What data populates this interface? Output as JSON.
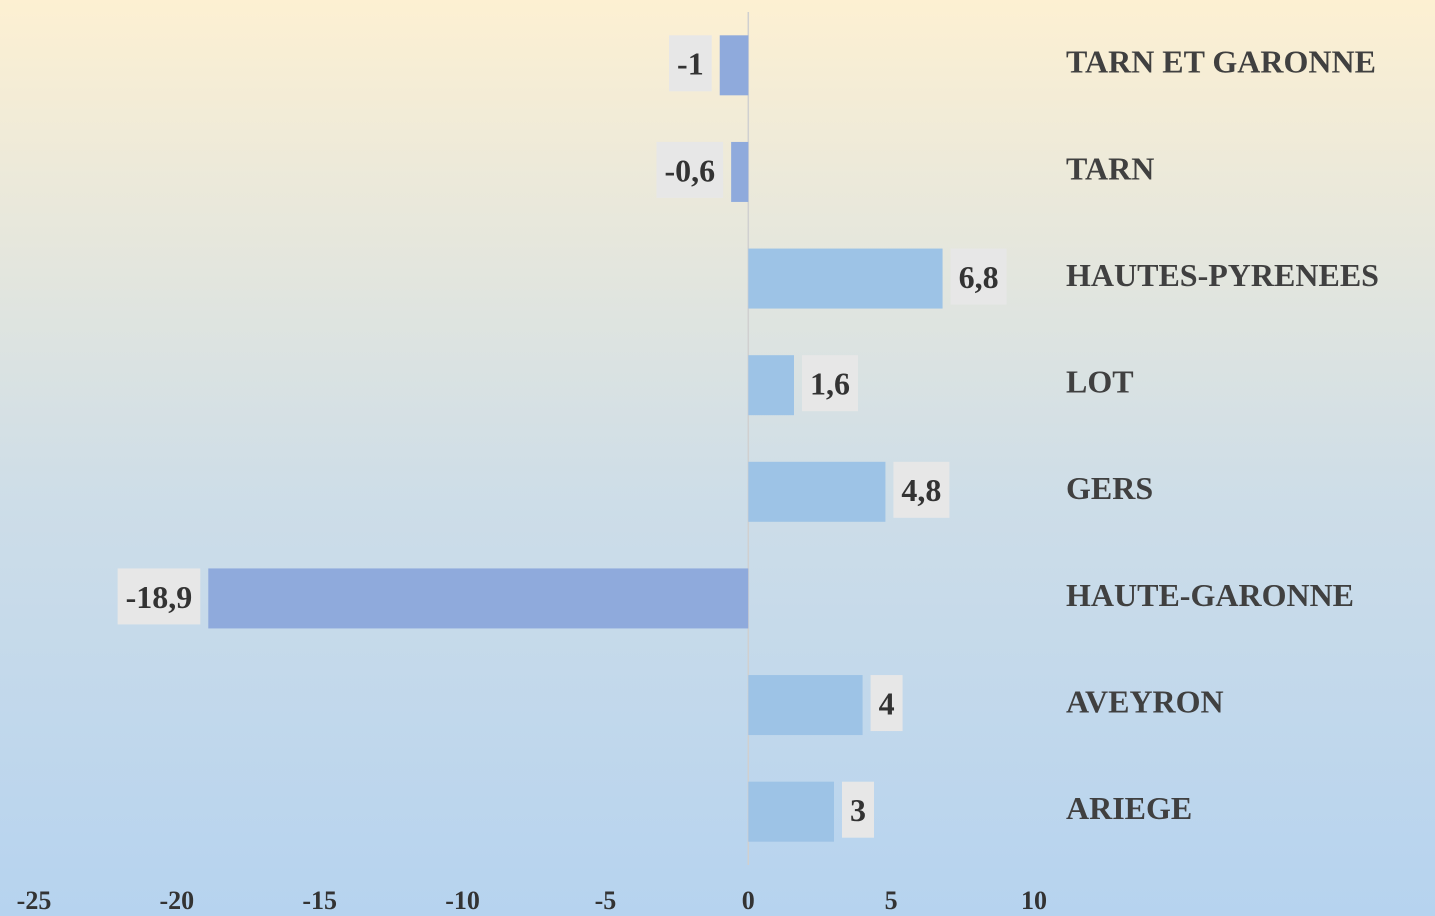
{
  "chart_data": {
    "type": "barh",
    "categories": [
      "TARN ET GARONNE",
      "TARN",
      "HAUTES-PYRENEES",
      "LOT",
      "GERS",
      "HAUTE-GARONNE",
      "AVEYRON",
      "ARIEGE"
    ],
    "values": [
      -1,
      -0.6,
      6.8,
      1.6,
      4.8,
      -18.9,
      4,
      3
    ],
    "value_labels": [
      "-1",
      "-0,6",
      "6,8",
      "1,6",
      "4,8",
      "-18,9",
      "4",
      "3"
    ],
    "color": "#9dc3e6",
    "negative_color": "#8faadc",
    "xlim": [
      -25,
      10
    ],
    "xticks": [
      -25,
      -20,
      -15,
      -10,
      -5,
      0,
      5,
      10
    ]
  }
}
